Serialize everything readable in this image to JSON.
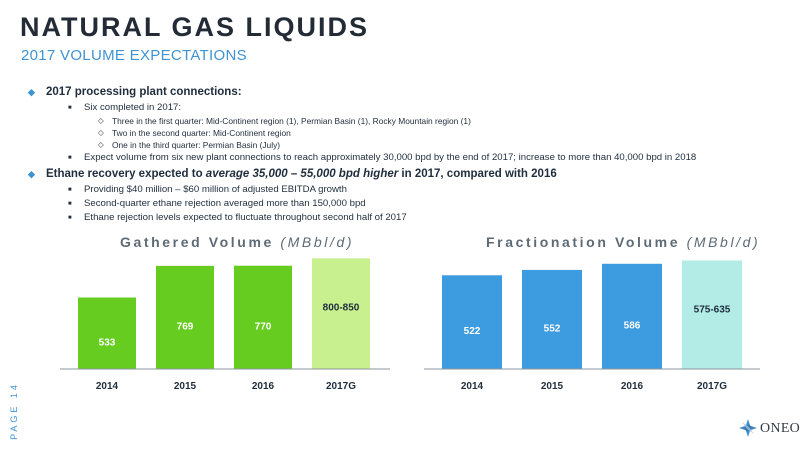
{
  "header": {
    "title": "NATURAL GAS LIQUIDS",
    "subtitle": "2017 VOLUME EXPECTATIONS"
  },
  "bullets": {
    "b1": "2017 processing plant connections:",
    "b1_1": "Six completed in 2017:",
    "b1_1_1": "Three in the first quarter: Mid-Continent region (1), Permian Basin (1), Rocky Mountain region (1)",
    "b1_1_2": "Two in the second quarter: Mid-Continent region",
    "b1_1_3": "One in the third quarter: Permian Basin (July)",
    "b1_2": "Expect volume from six new plant connections to reach approximately 30,000 bpd by the end of 2017; increase to more than 40,000 bpd in 2018",
    "b2_pre": "Ethane recovery expected to ",
    "b2_em": "average 35,000 – 55,000 bpd higher",
    "b2_post": " in 2017, compared with 2016",
    "b2_1": "Providing $40 million – $60 million of adjusted EBITDA growth",
    "b2_2": "Second-quarter ethane rejection averaged more than 150,000 bpd",
    "b2_3": "Ethane rejection levels expected to fluctuate throughout second half of 2017"
  },
  "chart_data": [
    {
      "type": "bar",
      "title": "Gathered Volume",
      "unit": "(MBbl/d)",
      "categories": [
        "2014",
        "2015",
        "2016",
        "2017G"
      ],
      "values": [
        533,
        769,
        770,
        825
      ],
      "labels": [
        "533",
        "769",
        "770",
        "800-850"
      ],
      "colors": [
        "#66cc1f",
        "#66cc1f",
        "#66cc1f",
        "#c8f08f"
      ],
      "ylim": [
        0,
        850
      ],
      "grid": false
    },
    {
      "type": "bar",
      "title": "Fractionation Volume",
      "unit": "(MBbl/d)",
      "categories": [
        "2014",
        "2015",
        "2016",
        "2017G"
      ],
      "values": [
        522,
        552,
        586,
        605
      ],
      "labels": [
        "522",
        "552",
        "586",
        "575-635"
      ],
      "colors": [
        "#3d9be0",
        "#3d9be0",
        "#3d9be0",
        "#b3ece7"
      ],
      "ylim": [
        0,
        635
      ],
      "grid": false
    }
  ],
  "footer": {
    "page_label": "PAGE 14",
    "logo_text": "ONEOK"
  }
}
